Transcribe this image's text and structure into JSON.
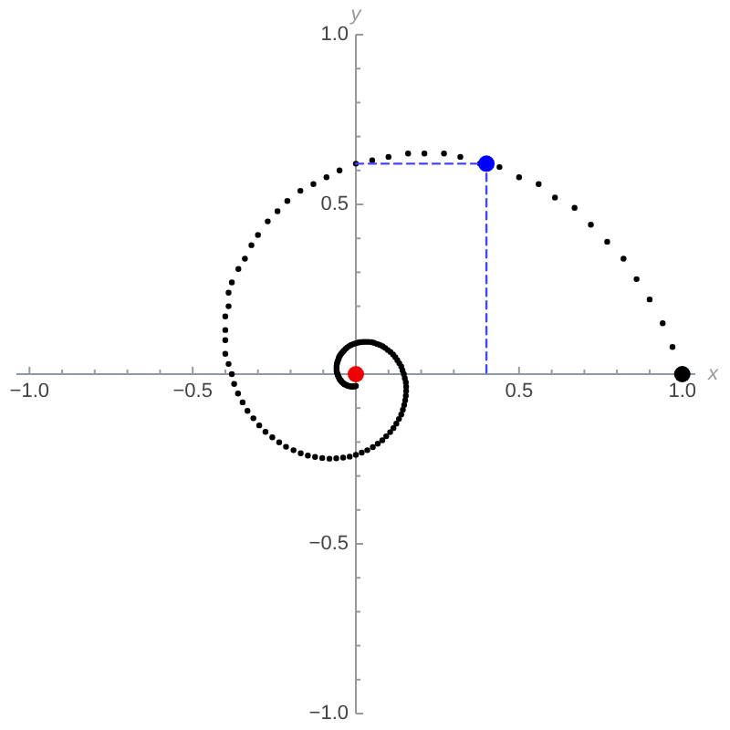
{
  "chart_data": {
    "type": "scatter",
    "xlabel": "x",
    "ylabel": "y",
    "xlim": [
      -1.04,
      1.04
    ],
    "ylim": [
      -1,
      1
    ],
    "xticks": [
      {
        "value": -1,
        "label": "−1.0"
      },
      {
        "value": -0.9,
        "label": null
      },
      {
        "value": -0.8,
        "label": null
      },
      {
        "value": -0.7,
        "label": null
      },
      {
        "value": -0.6,
        "label": null
      },
      {
        "value": -0.5,
        "label": "−0.5"
      },
      {
        "value": -0.4,
        "label": null
      },
      {
        "value": -0.3,
        "label": null
      },
      {
        "value": -0.2,
        "label": null
      },
      {
        "value": -0.1,
        "label": null
      },
      {
        "value": 0.1,
        "label": null
      },
      {
        "value": 0.2,
        "label": null
      },
      {
        "value": 0.3,
        "label": null
      },
      {
        "value": 0.4,
        "label": null
      },
      0.5,
      {
        "value": 0.6,
        "label": null
      },
      {
        "value": 0.7,
        "label": null
      },
      {
        "value": 0.8,
        "label": null
      },
      {
        "value": 0.9,
        "label": null
      },
      {
        "value": 1,
        "label": "1.0"
      }
    ],
    "yticks": [
      {
        "value": -1,
        "label": "−1.0"
      },
      {
        "value": -0.9,
        "label": null
      },
      {
        "value": -0.8,
        "label": null
      },
      {
        "value": -0.7,
        "label": null
      },
      {
        "value": -0.6,
        "label": null
      },
      {
        "value": -0.5,
        "label": "−0.5"
      },
      {
        "value": -0.4,
        "label": null
      },
      {
        "value": -0.3,
        "label": null
      },
      {
        "value": -0.2,
        "label": null
      },
      {
        "value": -0.1,
        "label": null
      },
      {
        "value": 0.1,
        "label": null
      },
      {
        "value": 0.2,
        "label": null
      },
      {
        "value": 0.3,
        "label": null
      },
      {
        "value": 0.4,
        "label": null
      },
      0.5,
      {
        "value": 0.6,
        "label": null
      },
      {
        "value": 0.7,
        "label": null
      },
      {
        "value": 0.8,
        "label": null
      },
      {
        "value": 0.9,
        "label": null
      },
      {
        "value": 1,
        "label": "1.0"
      }
    ],
    "marker": "circle",
    "series": [
      {
        "color": "#000000",
        "x": [
          0.97,
          0.94,
          0.9,
          0.86,
          0.82,
          0.77,
          0.72,
          0.67,
          0.61,
          0.56,
          0.5,
          0.44,
          0.38,
          0.32,
          0.27,
          0.21,
          0.16,
          0.1,
          0.05,
          0,
          -0.05,
          -0.09,
          -0.13,
          -0.17,
          -0.21,
          -0.24,
          -0.27,
          -0.3,
          -0.32,
          -0.34,
          -0.36,
          -0.38,
          -0.39,
          -0.39,
          -0.4,
          -0.4,
          -0.4,
          -0.4,
          -0.39,
          -0.38,
          -0.373,
          -0.361,
          -0.347,
          -0.332,
          -0.314,
          -0.296,
          -0.277,
          -0.256,
          -0.235,
          -0.214,
          -0.191,
          -0.169,
          -0.147,
          -0.125,
          -0.103,
          -0.081,
          -0.06,
          -0.039,
          -0.019,
          0,
          0.018,
          0.035,
          0.052,
          0.067,
          0.081,
          0.093,
          0.105,
          0.115,
          0.124,
          0.132,
          0.139,
          0.144,
          0.148,
          0.151,
          0.153,
          0.154,
          0.154,
          0.153,
          0.15,
          0.147,
          0.143,
          0.139,
          0.133,
          0.127,
          0.121,
          0.114,
          0.106,
          0.098,
          0.09,
          0.082,
          0.073,
          0.065,
          0.056,
          0.048,
          0.039,
          0.031,
          0.023,
          0.015,
          0.007,
          0,
          -0.007,
          -0.014,
          -0.02,
          -0.026,
          -0.031,
          -0.036,
          -0.04,
          -0.044,
          -0.048,
          -0.051,
          -0.053,
          -0.055,
          -0.057,
          -0.058,
          -0.059,
          -0.059,
          -0.059,
          -0.059,
          -0.058,
          -0.056,
          -0.055,
          -0.053,
          -0.051,
          -0.049,
          -0.046,
          -0.044,
          -0.041,
          -0.038,
          -0.035,
          -0.031,
          -0.028,
          -0.025,
          -0.022,
          -0.018,
          -0.015,
          -0.012,
          -0.009,
          -0.006,
          -0.003,
          0
        ],
        "values": [
          0.08,
          0.15,
          0.22,
          0.28,
          0.34,
          0.39,
          0.44,
          0.49,
          0.52,
          0.56,
          0.58,
          0.61,
          0.62,
          0.64,
          0.65,
          0.65,
          0.65,
          0.64,
          0.63,
          0.62,
          0.6,
          0.58,
          0.56,
          0.54,
          0.51,
          0.48,
          0.45,
          0.41,
          0.38,
          0.34,
          0.31,
          0.27,
          0.24,
          0.2,
          0.17,
          0.13,
          0.1,
          0.06,
          0.03,
          0,
          -0.029,
          -0.057,
          -0.083,
          -0.108,
          -0.13,
          -0.151,
          -0.17,
          -0.186,
          -0.201,
          -0.214,
          -0.224,
          -0.233,
          -0.24,
          -0.244,
          -0.247,
          -0.249,
          -0.248,
          -0.246,
          -0.243,
          -0.238,
          -0.231,
          -0.224,
          -0.215,
          -0.205,
          -0.195,
          -0.183,
          -0.171,
          -0.159,
          -0.146,
          -0.132,
          -0.119,
          -0.105,
          -0.091,
          -0.077,
          -0.064,
          -0.05,
          -0.037,
          -0.024,
          -0.012,
          0,
          0.011,
          0.022,
          0.032,
          0.041,
          0.05,
          0.058,
          0.065,
          0.071,
          0.077,
          0.082,
          0.086,
          0.089,
          0.092,
          0.094,
          0.095,
          0.095,
          0.095,
          0.094,
          0.093,
          0.091,
          0.089,
          0.086,
          0.083,
          0.079,
          0.075,
          0.07,
          0.066,
          0.061,
          0.056,
          0.051,
          0.046,
          0.04,
          0.035,
          0.03,
          0.024,
          0.019,
          0.014,
          0.009,
          0.005,
          0,
          -0.004,
          -0.008,
          -0.012,
          -0.016,
          -0.019,
          -0.022,
          -0.025,
          -0.027,
          -0.03,
          -0.031,
          -0.033,
          -0.034,
          -0.035,
          -0.036,
          -0.036,
          -0.037,
          -0.037,
          -0.036,
          -0.036,
          -0.035
        ]
      },
      {
        "type": "line",
        "color": "#4444ff",
        "line_style": "dashed",
        "marker": "none",
        "x": [
          0,
          0.4,
          0.4
        ],
        "values": [
          0.62,
          0.62,
          0
        ]
      },
      {
        "color": "#000000",
        "x": [
          1
        ],
        "values": [
          0
        ]
      },
      {
        "color": "#ee0000",
        "x": [
          0
        ],
        "values": [
          0
        ]
      },
      {
        "color": "#0000ff",
        "x": [
          0.4
        ],
        "values": [
          0.62
        ]
      }
    ]
  }
}
